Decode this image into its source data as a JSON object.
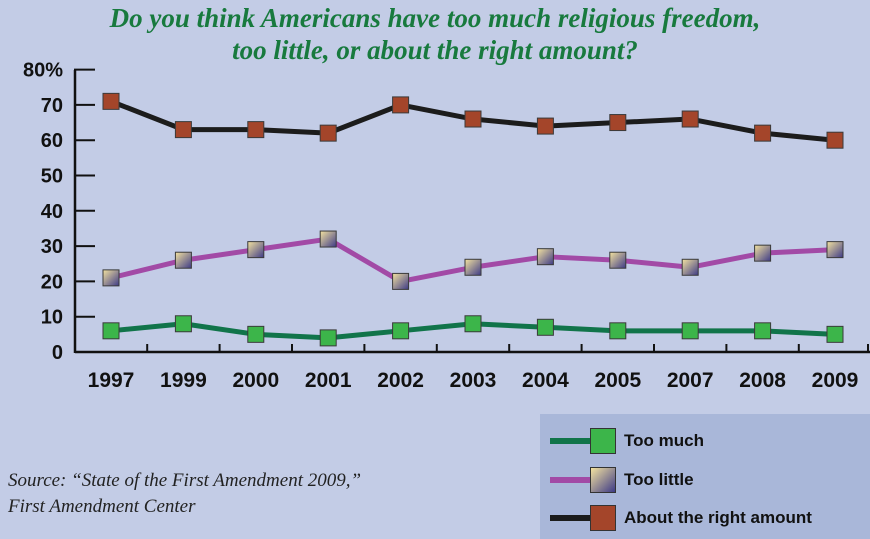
{
  "title_line1": "Do you think Americans have too much religious freedom,",
  "title_line2": "too little, or about the right amount?",
  "source_line1": "Source: “State of the First Amendment 2009,”",
  "source_line2": "First Amendment Center",
  "colors": {
    "too_much": "#11744a",
    "too_much_marker": "#3cb54a",
    "too_little": "#a24aa6",
    "too_little_marker_light": "#f4e3a0",
    "too_little_marker_dark": "#3d3a86",
    "right_amount": "#1c1c1c",
    "right_amount_marker": "#a4452a",
    "title": "#187a3e",
    "background": "#c3cce6",
    "legend_background": "#a9b7d9"
  },
  "chart_data": {
    "type": "line",
    "title": "Do you think Americans have too much religious freedom, too little, or about the right amount?",
    "categories": [
      "1997",
      "1999",
      "2000",
      "2001",
      "2002",
      "2003",
      "2004",
      "2005",
      "2007",
      "2008",
      "2009"
    ],
    "y_ticks": [
      "0",
      "10",
      "20",
      "30",
      "40",
      "50",
      "60",
      "70",
      "80%"
    ],
    "ylim": [
      0,
      80
    ],
    "grid": false,
    "legend_position": "bottom-right",
    "series": [
      {
        "name": "Too much",
        "values": [
          6,
          8,
          5,
          4,
          6,
          8,
          7,
          6,
          6,
          6,
          5
        ]
      },
      {
        "name": "Too little",
        "values": [
          21,
          26,
          29,
          32,
          20,
          24,
          27,
          26,
          24,
          28,
          29
        ]
      },
      {
        "name": "About the right amount",
        "values": [
          71,
          63,
          63,
          62,
          70,
          66,
          64,
          65,
          66,
          62,
          60
        ]
      }
    ]
  }
}
